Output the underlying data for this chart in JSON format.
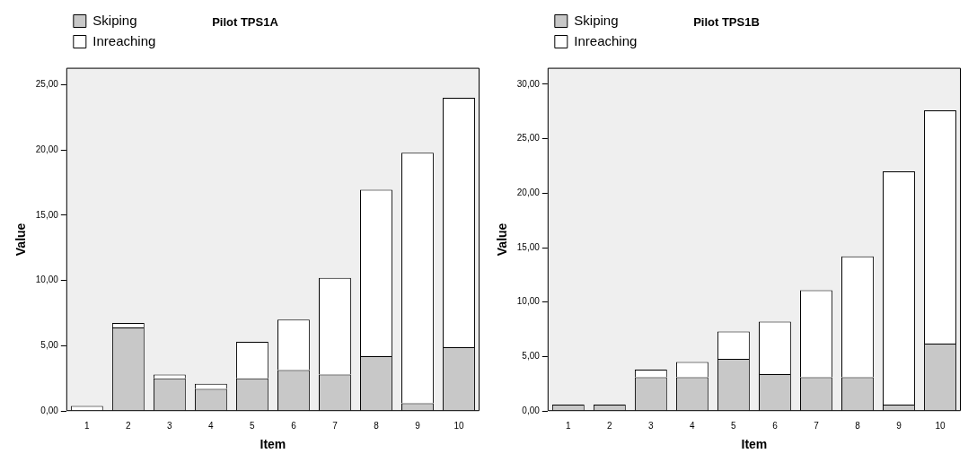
{
  "chart_data": [
    {
      "type": "bar",
      "title": "Pilot TPS1A",
      "xlabel": "Item",
      "ylabel": "Value",
      "stacked": true,
      "categories": [
        "1",
        "2",
        "3",
        "4",
        "5",
        "6",
        "7",
        "8",
        "9",
        "10"
      ],
      "series": [
        {
          "name": "Skiping",
          "color": "#c8c8c8",
          "values": [
            0,
            6.4,
            2.5,
            1.7,
            2.5,
            3.15,
            2.8,
            4.2,
            0.6,
            4.9
          ]
        },
        {
          "name": "Inreaching",
          "color": "#ffffff",
          "values": [
            0.4,
            0.35,
            0.3,
            0.4,
            2.8,
            3.85,
            7.4,
            12.75,
            19.2,
            19.1
          ]
        }
      ],
      "ylim": [
        0,
        26.3
      ],
      "yticks": [
        {
          "value": 0,
          "label": "0,00"
        },
        {
          "value": 5,
          "label": "5,00"
        },
        {
          "value": 10,
          "label": "10,00"
        },
        {
          "value": 15,
          "label": "15,00"
        },
        {
          "value": 20,
          "label": "20,00"
        },
        {
          "value": 25,
          "label": "25,00"
        }
      ],
      "grid": false,
      "legend": "top left"
    },
    {
      "type": "bar",
      "title": "Pilot TPS1B",
      "xlabel": "Item",
      "ylabel": "Value",
      "stacked": true,
      "categories": [
        "1",
        "2",
        "3",
        "4",
        "5",
        "6",
        "7",
        "8",
        "9",
        "10"
      ],
      "series": [
        {
          "name": "Skiping",
          "color": "#c8c8c8",
          "values": [
            0.6,
            0.6,
            3.1,
            3.1,
            4.8,
            3.4,
            3.1,
            3.1,
            0.6,
            6.2
          ]
        },
        {
          "name": "Inreaching",
          "color": "#ffffff",
          "values": [
            0,
            0,
            0.7,
            1.4,
            2.5,
            4.8,
            8.0,
            11.1,
            21.4,
            21.4
          ]
        }
      ],
      "ylim": [
        0,
        31.5
      ],
      "yticks": [
        {
          "value": 0,
          "label": "0,00"
        },
        {
          "value": 5,
          "label": "5,00"
        },
        {
          "value": 10,
          "label": "10,00"
        },
        {
          "value": 15,
          "label": "15,00"
        },
        {
          "value": 20,
          "label": "20,00"
        },
        {
          "value": 25,
          "label": "25,00"
        },
        {
          "value": 30,
          "label": "30,00"
        }
      ],
      "grid": false,
      "legend": "top left"
    }
  ]
}
